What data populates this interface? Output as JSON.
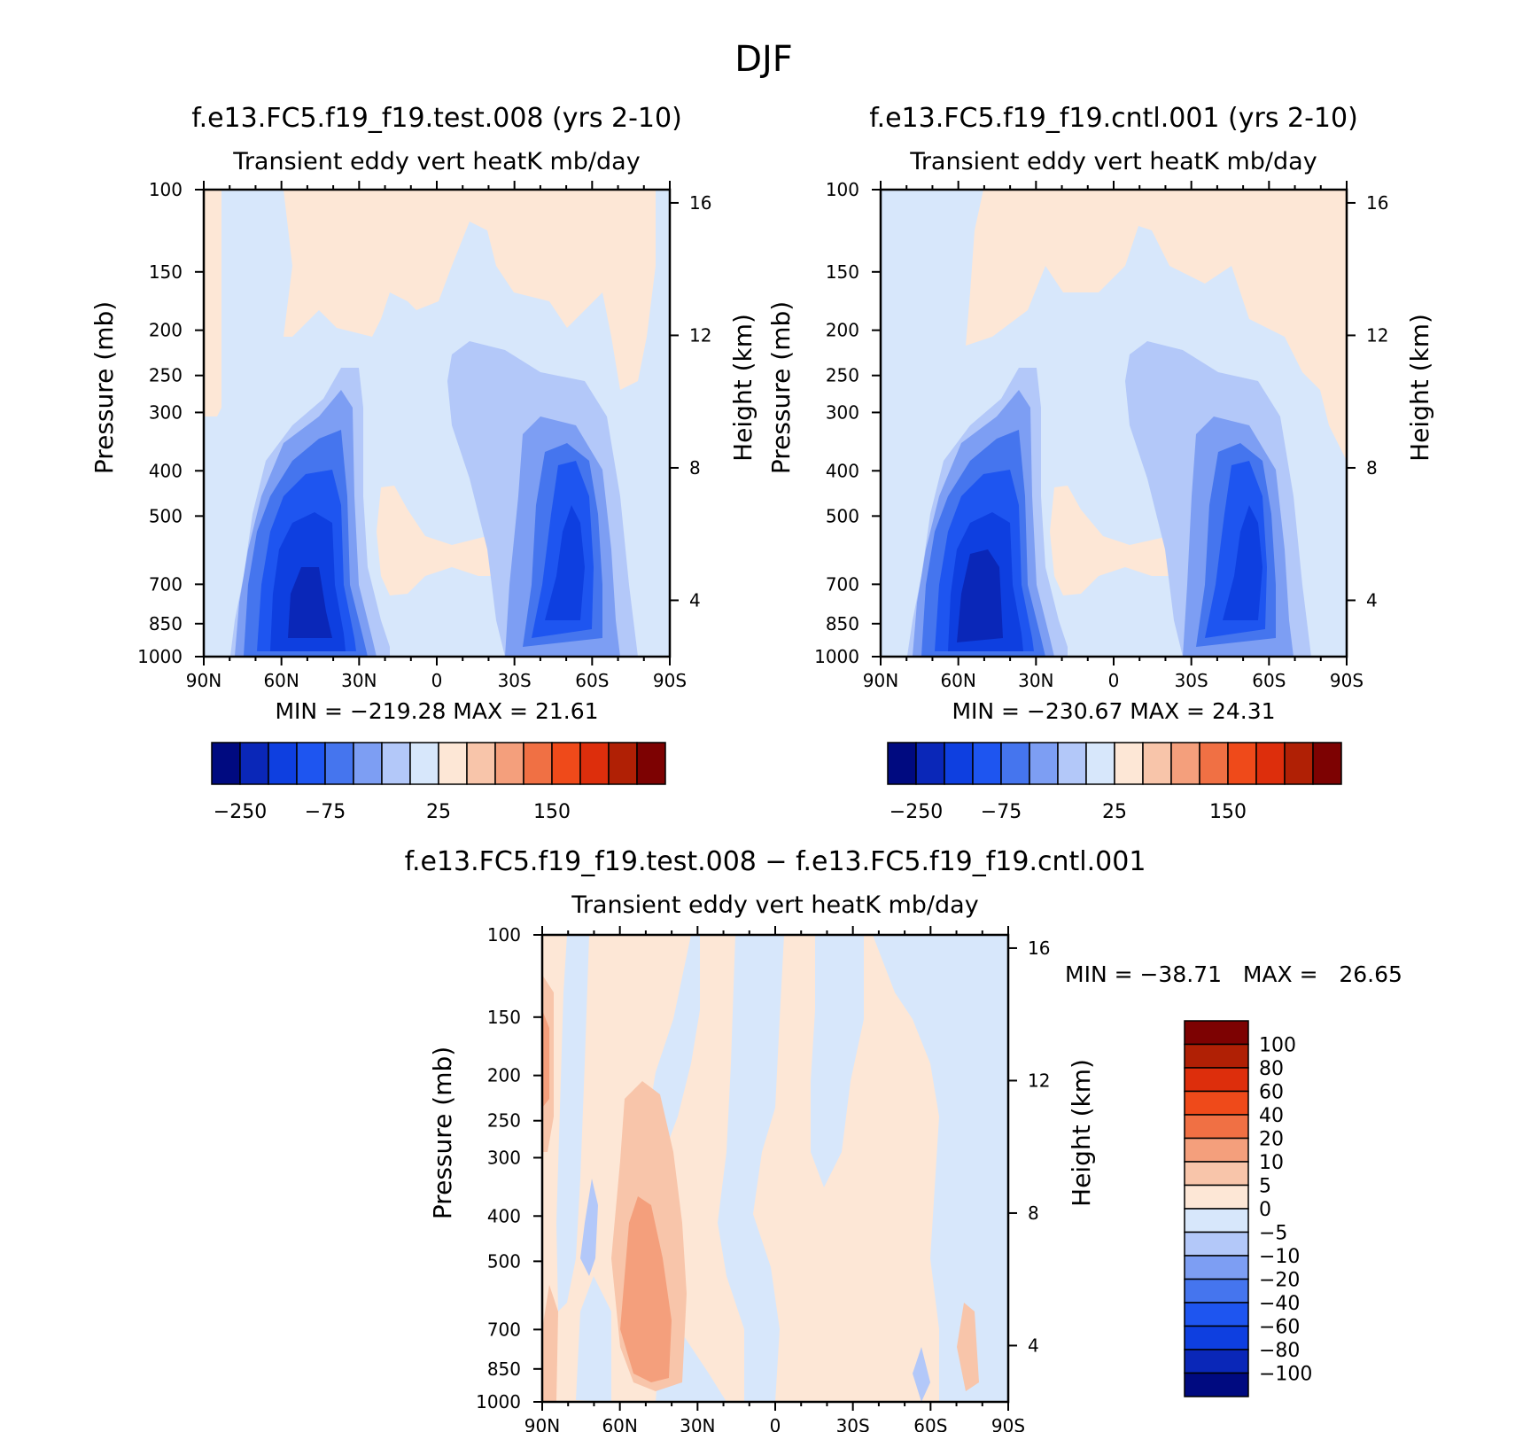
{
  "figure_title": "DJF",
  "panels": [
    {
      "title": "f.e13.FC5.f19_f19.test.008 (yrs 2-10)",
      "subtitle": "Transient eddy vert heatK mb/day",
      "stats": "MIN = −219.28   MAX =   21.61"
    },
    {
      "title": "f.e13.FC5.f19_f19.cntl.001 (yrs 2-10)",
      "subtitle": "Transient eddy vert heatK mb/day",
      "stats": "MIN = −230.67   MAX =   24.31"
    },
    {
      "title": "f.e13.FC5.f19_f19.test.008 − f.e13.FC5.f19_f19.cntl.001",
      "subtitle": "Transient eddy vert heatK mb/day",
      "stats": "MIN = −38.71   MAX =   26.65"
    }
  ],
  "chart_data": {
    "type": "heatmap",
    "colors": {
      "blue_to_red": [
        "#000a80",
        "#0a27b8",
        "#0e3fe0",
        "#1e55f0",
        "#4575ee",
        "#7d9ef3",
        "#b3c8f9",
        "#d7e7fb",
        "#fde7d6",
        "#f8c5aa",
        "#f49f7c",
        "#f07044",
        "#ef4a1a",
        "#dd2e0c",
        "#b02005",
        "#7d0202"
      ]
    },
    "x": {
      "tick_labels": [
        "90N",
        "60N",
        "30N",
        "0",
        "30S",
        "60S",
        "90S"
      ],
      "range_deg": [
        90,
        -90
      ]
    },
    "y": {
      "label": "Pressure (mb)",
      "tick_labels": [
        "100",
        "150",
        "200",
        "250",
        "300",
        "400",
        "500",
        "700",
        "850",
        "1000"
      ],
      "range": [
        100,
        1000
      ],
      "scale": "log"
    },
    "y2": {
      "label": "Height (km)",
      "tick_labels": [
        "16",
        "12",
        "8",
        "4"
      ]
    },
    "colorbar_main": {
      "tick_labels": [
        "−250",
        "−75",
        "25",
        "150"
      ],
      "orientation": "horizontal"
    },
    "colorbar_diff": {
      "tick_labels": [
        "100",
        "80",
        "60",
        "40",
        "20",
        "10",
        "5",
        "0",
        "−5",
        "−10",
        "−20",
        "−40",
        "−60",
        "−80",
        "−100"
      ],
      "orientation": "vertical"
    }
  }
}
